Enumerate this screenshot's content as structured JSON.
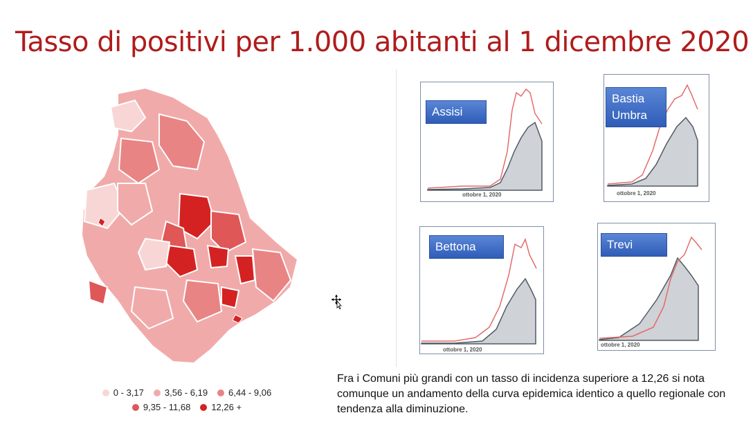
{
  "slide": {
    "title": "Tasso di positivi per 1.000 abitanti al 1 dicembre 2020",
    "note": "Fra i Comuni più grandi con un tasso di incidenza superiore a 12,26 si nota comunque un andamento della curva epidemica identico a quello regionale con tendenza alla diminuzione."
  },
  "legend": {
    "items": [
      {
        "label": "0 - 3,17",
        "color": "#f8d6d6"
      },
      {
        "label": "3,56 - 6,19",
        "color": "#f1aaaa"
      },
      {
        "label": "6,44 - 9,06",
        "color": "#e98484"
      },
      {
        "label": "9,35 - 11,68",
        "color": "#df5757"
      },
      {
        "label": "12,26 +",
        "color": "#d42222"
      }
    ]
  },
  "panels": [
    {
      "label": "Assisi",
      "date_label": "ottobre 1, 2020"
    },
    {
      "label": "Bastia Umbra",
      "date_label": "ottobre 1, 2020"
    },
    {
      "label": "Bettona",
      "date_label": "ottobre 1, 2020"
    },
    {
      "label": "Trevi",
      "date_label": "ottobre 1, 2020"
    }
  ],
  "colors": {
    "title": "#b01c1c",
    "area_fill": "#cfd2d6",
    "area_line": "#505a66",
    "line_red": "#e46a6a",
    "label_bg": "#3f6fc7"
  }
}
